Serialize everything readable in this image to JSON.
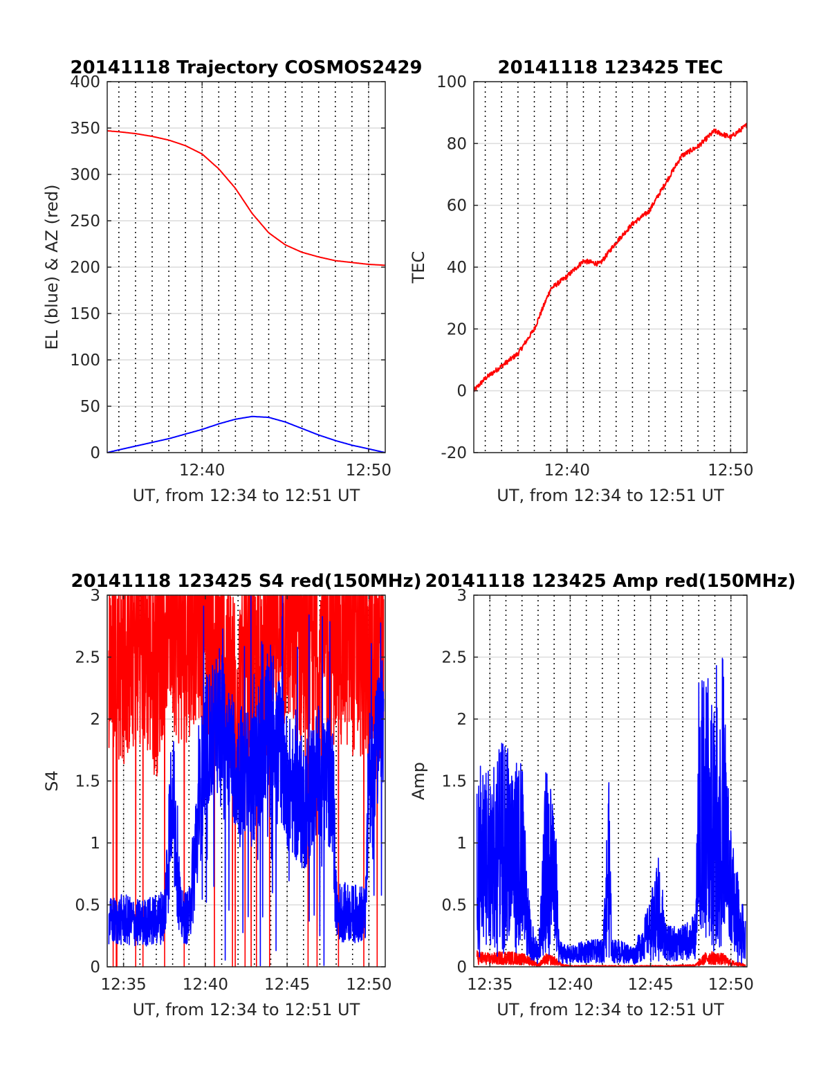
{
  "chart_data": [
    {
      "type": "line",
      "title": "20141118 Trajectory COSMOS2429",
      "xlabel": "UT, from 12:34 to 12:51 UT",
      "ylabel": "EL (blue) & AZ (red)",
      "xlim_minutes": [
        754.3,
        771.0
      ],
      "ylim": [
        0,
        400
      ],
      "x_ticks": [
        {
          "value": 760,
          "label": "12:40"
        },
        {
          "value": 770,
          "label": "12:50"
        }
      ],
      "y_ticks": [
        0,
        50,
        100,
        150,
        200,
        250,
        300,
        350,
        400
      ],
      "grid": true,
      "minute_guides": true,
      "series": [
        {
          "color": "#ff0000",
          "x": [
            754.3,
            755,
            756,
            757,
            758,
            759,
            760,
            761,
            762,
            763,
            764,
            765,
            766,
            767,
            768,
            769,
            770,
            771
          ],
          "y": [
            347,
            346,
            344,
            341,
            337,
            331,
            322,
            306,
            285,
            258,
            237,
            224,
            216,
            211,
            207,
            205,
            203,
            202
          ]
        },
        {
          "color": "#0000ff",
          "x": [
            754.3,
            755,
            756,
            757,
            758,
            759,
            760,
            761,
            762,
            763,
            764,
            765,
            766,
            767,
            768,
            769,
            770,
            771
          ],
          "y": [
            0,
            3,
            7,
            11,
            15,
            20,
            25,
            31,
            36,
            39,
            38,
            33,
            26,
            19,
            13,
            8,
            4,
            0
          ]
        }
      ]
    },
    {
      "type": "line",
      "title": "20141118 123425 TEC",
      "xlabel": "UT, from 12:34 to 12:51 UT",
      "ylabel": "TEC",
      "xlim_minutes": [
        754.3,
        771.0
      ],
      "ylim": [
        -20,
        100
      ],
      "x_ticks": [
        {
          "value": 760,
          "label": "12:40"
        },
        {
          "value": 770,
          "label": "12:50"
        }
      ],
      "y_ticks": [
        -20,
        0,
        20,
        40,
        60,
        80,
        100
      ],
      "grid": true,
      "minute_guides": true,
      "series": [
        {
          "color": "#ff0000",
          "x": [
            754.3,
            755,
            756,
            757,
            758,
            759,
            760,
            761,
            762,
            763,
            764,
            765,
            766,
            767,
            768,
            769,
            770,
            771
          ],
          "y": [
            0,
            4,
            8,
            12,
            20,
            33,
            37,
            42,
            41,
            48,
            54,
            58,
            67,
            76,
            79,
            84,
            82,
            86
          ]
        }
      ]
    },
    {
      "type": "line",
      "title": "20141118 123425 S4 red(150MHz)",
      "xlabel": "UT, from 12:34 to 12:51 UT",
      "ylabel": "S4",
      "xlim_minutes": [
        754.0,
        771.0
      ],
      "ylim": [
        0,
        3
      ],
      "x_ticks": [
        {
          "value": 755,
          "label": "12:35"
        },
        {
          "value": 760,
          "label": "12:40"
        },
        {
          "value": 765,
          "label": "12:45"
        },
        {
          "value": 770,
          "label": "12:50"
        }
      ],
      "y_ticks": [
        0,
        0.5,
        1,
        1.5,
        2,
        2.5,
        3
      ],
      "grid": true,
      "minute_guides": true,
      "series": [
        {
          "color": "#ff0000",
          "x": [
            754.1,
            755,
            756,
            757,
            757.7,
            758.5,
            759.5,
            761,
            762,
            763,
            764,
            765,
            766,
            767,
            768,
            769,
            770,
            770.9
          ],
          "y": [
            2.6,
            2.5,
            2.7,
            2.4,
            3.0,
            2.6,
            2.9,
            2.5,
            2.2,
            2.3,
            2.6,
            2.8,
            2.6,
            2.5,
            2.7,
            2.6,
            2.5,
            2.6
          ]
        },
        {
          "color": "#0000ff",
          "x": [
            754.1,
            755,
            756,
            757,
            757.5,
            758,
            758.5,
            759,
            760,
            761,
            762,
            763,
            764,
            765,
            766,
            767,
            767.8,
            768,
            769,
            769.8,
            770,
            770.9
          ],
          "y": [
            0.36,
            0.38,
            0.35,
            0.38,
            0.42,
            1.5,
            0.4,
            0.4,
            1.8,
            2.0,
            1.6,
            1.5,
            2.1,
            1.5,
            1.3,
            1.6,
            1.4,
            0.45,
            0.43,
            0.43,
            1.5,
            2.0
          ]
        }
      ]
    },
    {
      "type": "line",
      "title": "20141118 123425 Amp red(150MHz)",
      "xlabel": "UT, from 12:34 to 12:51 UT",
      "ylabel": "Amp",
      "xlim_minutes": [
        754.0,
        771.0
      ],
      "ylim": [
        0,
        3
      ],
      "x_ticks": [
        {
          "value": 755,
          "label": "12:35"
        },
        {
          "value": 760,
          "label": "12:40"
        },
        {
          "value": 765,
          "label": "12:45"
        },
        {
          "value": 770,
          "label": "12:50"
        }
      ],
      "y_ticks": [
        0,
        0.5,
        1,
        1.5,
        2,
        2.5,
        3
      ],
      "grid": true,
      "minute_guides": true,
      "series": [
        {
          "color": "#ff0000",
          "x": [
            754.2,
            755,
            756,
            757,
            757.5,
            758,
            758.5,
            759,
            759.5,
            760,
            762,
            764,
            766,
            767.8,
            768.5,
            769.5,
            770,
            770.9
          ],
          "y": [
            0.12,
            0.1,
            0.12,
            0.1,
            0.08,
            0.02,
            0.1,
            0.08,
            0.02,
            0.01,
            0.01,
            0.01,
            0.01,
            0.02,
            0.12,
            0.1,
            0.05,
            0.02
          ]
        },
        {
          "color": "#0000ff",
          "x": [
            754.2,
            755,
            756,
            757,
            757.5,
            758,
            758.5,
            759,
            759.3,
            760,
            761,
            762,
            762.4,
            762.6,
            763,
            764,
            765,
            765.5,
            766,
            767,
            767.8,
            768,
            769,
            769.5,
            770,
            770.9
          ],
          "y": [
            1.6,
            1.5,
            1.7,
            1.5,
            0.4,
            0.15,
            1.5,
            1.5,
            0.2,
            0.15,
            0.2,
            0.2,
            1.4,
            0.2,
            0.2,
            0.15,
            0.5,
            0.9,
            0.3,
            0.3,
            0.4,
            2.1,
            2.2,
            2.3,
            1.0,
            0.35
          ]
        }
      ]
    }
  ]
}
